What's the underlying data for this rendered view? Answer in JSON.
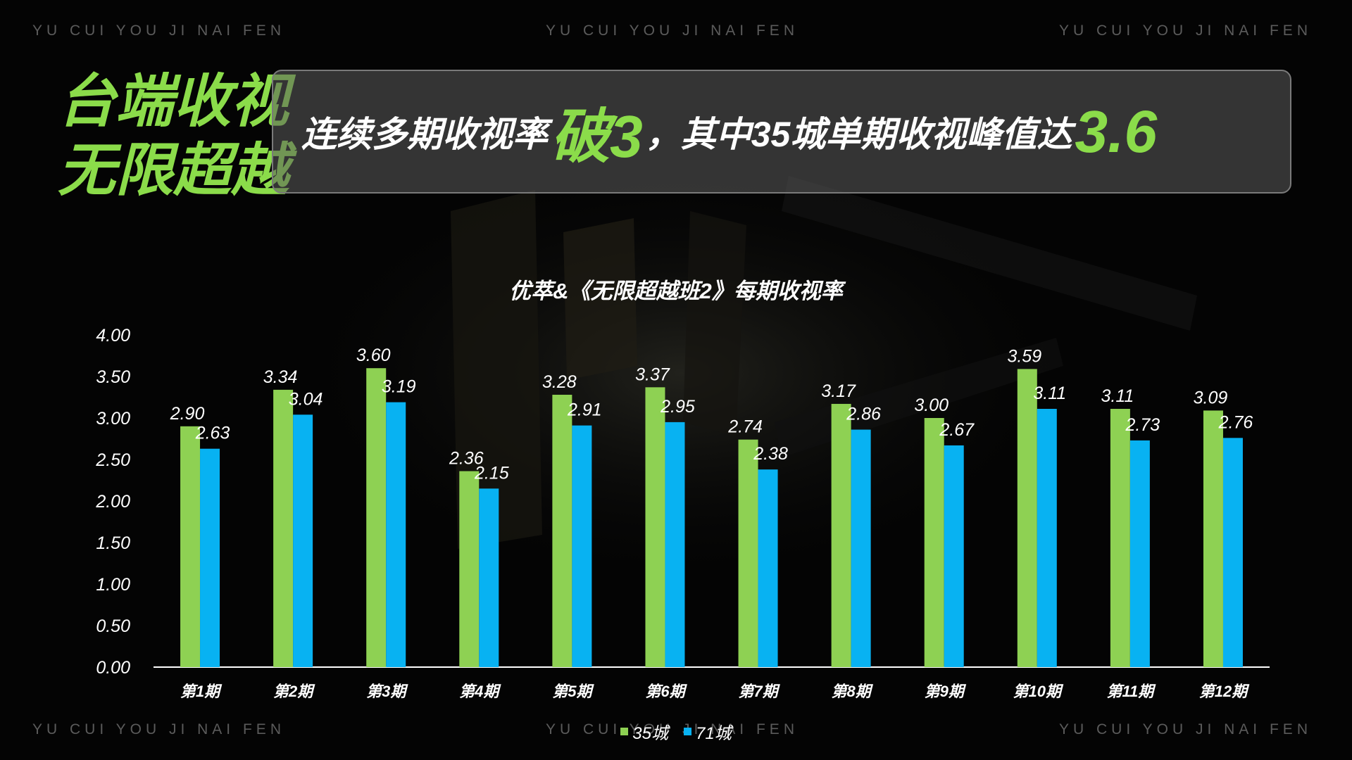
{
  "watermark": "YU  CUI  YOU  JI  NAI  FEN",
  "headline": {
    "line1": "台端收视",
    "line2": "无限超越"
  },
  "callout": {
    "part1": "连续多期收视率",
    "highlight1": "破3",
    "part2": "，其中35城单期收视峰值达",
    "highlight2": "3.6"
  },
  "colors": {
    "series_35": "#8ed153",
    "series_71": "#08b2f2",
    "accent": "#8bdc4a"
  },
  "chart_data": {
    "type": "bar",
    "title": "优萃&《无限超越班2》每期收视率",
    "categories": [
      "第1期",
      "第2期",
      "第3期",
      "第4期",
      "第5期",
      "第6期",
      "第7期",
      "第8期",
      "第9期",
      "第10期",
      "第11期",
      "第12期"
    ],
    "series": [
      {
        "name": "35城",
        "values": [
          2.9,
          3.34,
          3.6,
          2.36,
          3.28,
          3.37,
          2.74,
          3.17,
          3.0,
          3.59,
          3.11,
          3.09
        ]
      },
      {
        "name": "71城",
        "values": [
          2.63,
          3.04,
          3.19,
          2.15,
          2.91,
          2.95,
          2.38,
          2.86,
          2.67,
          3.11,
          2.73,
          2.76
        ]
      }
    ],
    "ylim": [
      0,
      4
    ],
    "yticks": [
      "0.00",
      "0.50",
      "1.00",
      "1.50",
      "2.00",
      "2.50",
      "3.00",
      "3.50",
      "4.00"
    ],
    "grid": false,
    "legend": "bottom-center"
  }
}
